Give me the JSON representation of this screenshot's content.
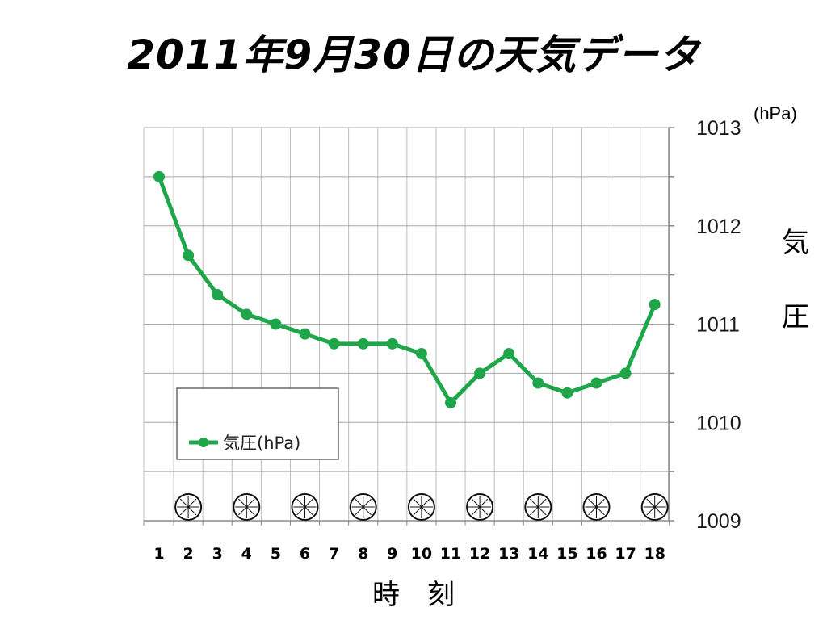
{
  "title": "2011年9月30日の天気データ",
  "chart_data": {
    "type": "line",
    "categories": [
      "1",
      "2",
      "3",
      "4",
      "5",
      "6",
      "7",
      "8",
      "9",
      "10",
      "11",
      "12",
      "13",
      "14",
      "15",
      "16",
      "17",
      "18"
    ],
    "series": [
      {
        "name": "気圧(hPa)",
        "color": "#1fa64a",
        "values": [
          1012.5,
          1011.7,
          1011.3,
          1011.1,
          1011.0,
          1010.9,
          1010.8,
          1010.8,
          1010.8,
          1010.7,
          1010.2,
          1010.5,
          1010.7,
          1010.4,
          1010.3,
          1010.4,
          1010.5,
          1011.2
        ]
      }
    ],
    "y_ticks": [
      "1009",
      "1010",
      "1011",
      "1012",
      "1013"
    ],
    "ylim": [
      1009,
      1013
    ],
    "y_unit": "(hPa)",
    "ylabel_chars": [
      "気",
      "圧"
    ],
    "xlabel": "時　刻",
    "y_axis_position": "right",
    "grid": true,
    "legend_position": "bottom-left",
    "weather_symbols": {
      "icon": "cloudy-weather-icon",
      "at_hours": [
        "2",
        "4",
        "6",
        "8",
        "10",
        "12",
        "14",
        "16",
        "18"
      ]
    }
  }
}
